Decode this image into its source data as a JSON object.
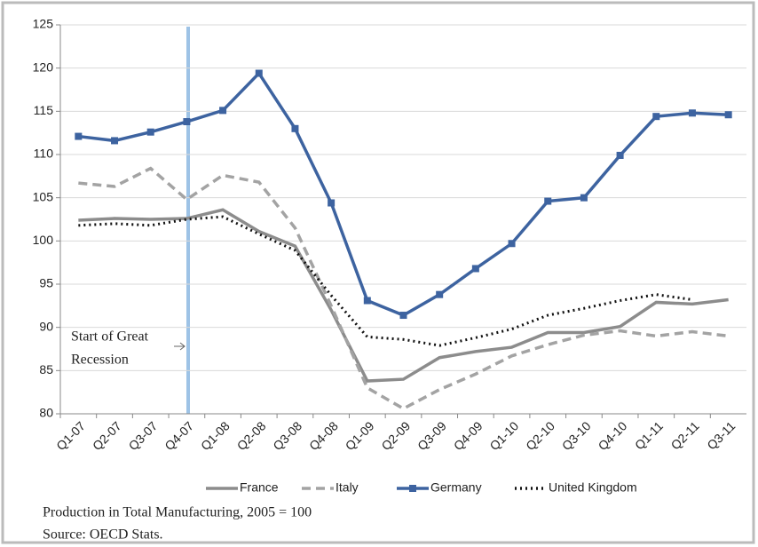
{
  "chart_data": {
    "type": "line",
    "categories": [
      "Q1-07",
      "Q2-07",
      "Q3-07",
      "Q4-07",
      "Q1-08",
      "Q2-08",
      "Q3-08",
      "Q4-08",
      "Q1-09",
      "Q2-09",
      "Q3-09",
      "Q4-09",
      "Q1-10",
      "Q2-10",
      "Q3-10",
      "Q4-10",
      "Q1-11",
      "Q2-11",
      "Q3-11"
    ],
    "series": [
      {
        "name": "France",
        "color": "#8c8c8c",
        "dash": "solid",
        "values": [
          102.4,
          102.6,
          102.5,
          102.6,
          103.6,
          101.1,
          99.4,
          92.0,
          83.8,
          84.0,
          86.5,
          87.2,
          87.7,
          89.4,
          89.4,
          90.1,
          92.9,
          92.7,
          93.2
        ]
      },
      {
        "name": "Italy",
        "color": "#a3a3a3",
        "dash": "dashed",
        "values": [
          106.7,
          106.3,
          108.4,
          104.8,
          107.6,
          106.8,
          101.5,
          92.5,
          83.0,
          80.6,
          82.8,
          84.6,
          86.7,
          88.0,
          89.1,
          89.6,
          89.0,
          89.5,
          89.0
        ]
      },
      {
        "name": "Germany",
        "color": "#3d63a0",
        "dash": "solid",
        "markers": true,
        "values": [
          112.1,
          111.6,
          112.6,
          113.8,
          115.1,
          119.4,
          113.0,
          104.4,
          93.1,
          91.4,
          93.8,
          96.8,
          99.7,
          104.6,
          105.0,
          109.9,
          114.4,
          114.8,
          114.6
        ]
      },
      {
        "name": "United Kingdom",
        "color": "#111111",
        "dash": "dotted",
        "values": [
          101.8,
          102.0,
          101.8,
          102.5,
          102.8,
          100.8,
          98.9,
          93.7,
          88.9,
          88.6,
          87.9,
          88.8,
          89.8,
          91.4,
          92.2,
          93.1,
          93.8,
          93.2,
          null
        ]
      }
    ],
    "ylim": [
      80,
      125
    ],
    "yticks": [
      80,
      85,
      90,
      95,
      100,
      105,
      110,
      115,
      120,
      125
    ],
    "grid": true,
    "annotation": [
      "Start of Great",
      "Recession"
    ],
    "notes": [
      "Production in Total Manufacturing, 2005 = 100",
      "Source: OECD Stats."
    ]
  }
}
